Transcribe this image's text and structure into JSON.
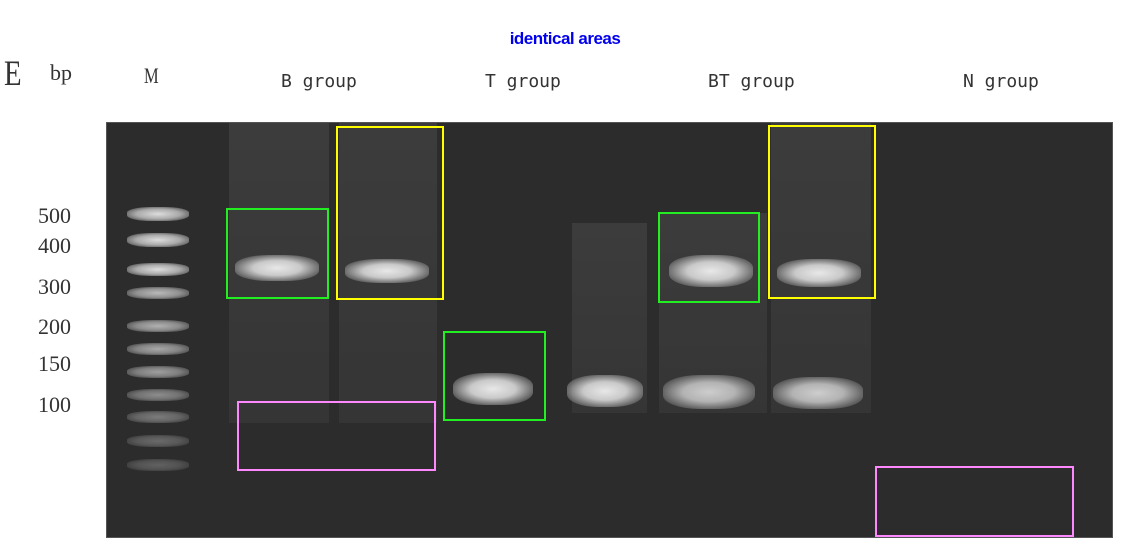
{
  "title": "identical areas",
  "panel_label": "E",
  "unit_label": "bp",
  "marker_label": "M",
  "groups": [
    "B group",
    "T group",
    "BT group",
    "N group"
  ],
  "size_markers": [
    "500",
    "400",
    "300",
    "200",
    "150",
    "100"
  ],
  "box_colors": {
    "identical_band": "#22ee22",
    "identical_smear": "#ffff00",
    "identical_dark": "#ff88ff"
  }
}
